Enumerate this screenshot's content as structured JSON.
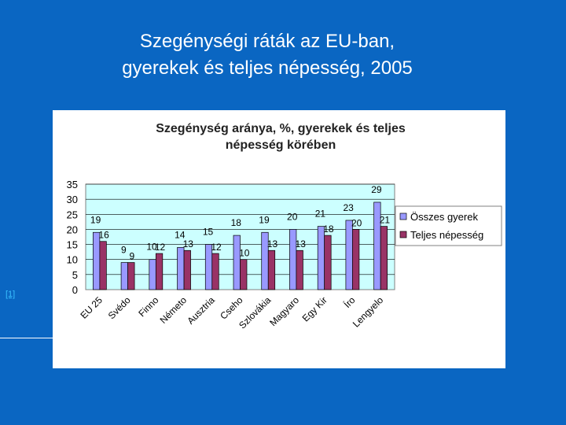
{
  "slide": {
    "title_line1": "Szegénységi ráták az EU-ban,",
    "title_line2": "gyerekek és teljes népesség, 2005",
    "footnote": "[1]"
  },
  "colors": {
    "background": "#0a66c2",
    "series_children": "#9999ff",
    "series_total": "#993366",
    "plot_bg": "#ccffff"
  },
  "chart_data": {
    "type": "bar",
    "title_line1": "Szegénység aránya, %, gyerekek és teljes",
    "title_line2": "népesség körében",
    "categories": [
      "EU 25",
      "Svédo",
      "Finno",
      "Németo",
      "Ausztria",
      "Cseho",
      "Szlovákia",
      "Magyaro",
      "Egy Kir",
      "Íro",
      "Lengyelo"
    ],
    "series": [
      {
        "name": "Összes gyerek",
        "values": [
          19,
          9,
          10,
          14,
          15,
          18,
          19,
          20,
          21,
          23,
          29
        ]
      },
      {
        "name": "Teljes népesség",
        "values": [
          16,
          9,
          12,
          13,
          12,
          10,
          13,
          13,
          18,
          20,
          21
        ]
      }
    ],
    "ylim": [
      0,
      35
    ],
    "yticks": [
      0,
      5,
      10,
      15,
      20,
      25,
      30,
      35
    ],
    "grid": true,
    "legend_position": "right",
    "data_labels": true
  }
}
